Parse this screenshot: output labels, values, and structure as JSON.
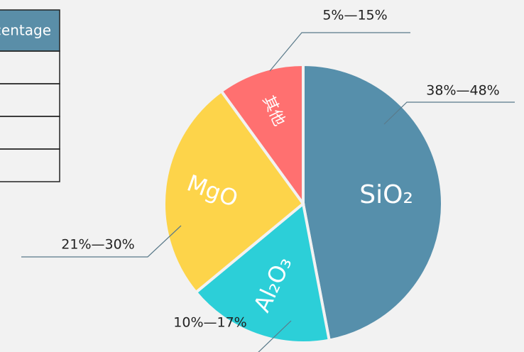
{
  "table": {
    "header": "Percentage",
    "rows": 4
  },
  "chart_data": {
    "type": "pie",
    "categories": [
      "SiO₂",
      "Al₂O₃",
      "MgO",
      "其他"
    ],
    "values": [
      47,
      17,
      26,
      10
    ],
    "colors": [
      "#568fab",
      "#2ccfd8",
      "#fdd44a",
      "#ff7070"
    ],
    "annotations": [
      "38%—48%",
      "10%—17%",
      "21%—30%",
      "5%—15%"
    ]
  }
}
